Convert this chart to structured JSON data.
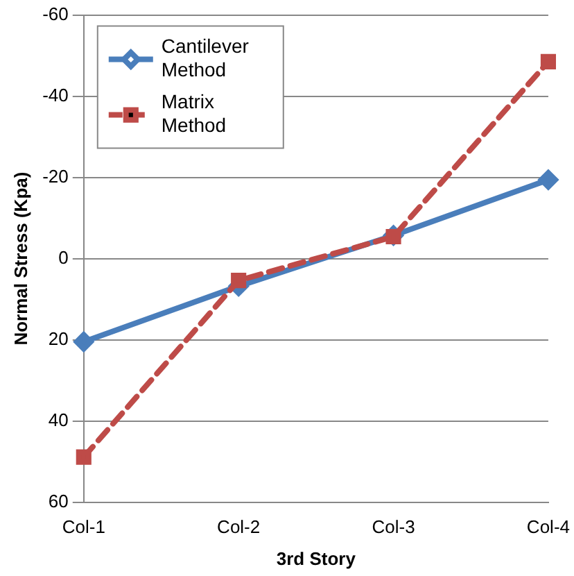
{
  "chart_data": {
    "type": "line",
    "xlabel": "3rd Story",
    "ylabel": "Normal Stress (Kpa)",
    "categories": [
      "Col-1",
      "Col-2",
      "Col-3",
      "Col-4"
    ],
    "series": [
      {
        "name": "Cantilever Method",
        "color": "#4a7ebb",
        "values": [
          20.5,
          6.8,
          -5.7,
          -19.4
        ],
        "marker": "diamond",
        "line_style": "solid"
      },
      {
        "name": "Matrix Method",
        "color": "#be4b48",
        "values": [
          48.9,
          5.4,
          -5.4,
          -48.5
        ],
        "marker": "square",
        "line_style": "dashed"
      }
    ],
    "ylim": [
      60,
      -60
    ],
    "yticks": [
      -60,
      -40,
      -20,
      0,
      20,
      40,
      60
    ],
    "grid": "y",
    "legend": "top left"
  }
}
